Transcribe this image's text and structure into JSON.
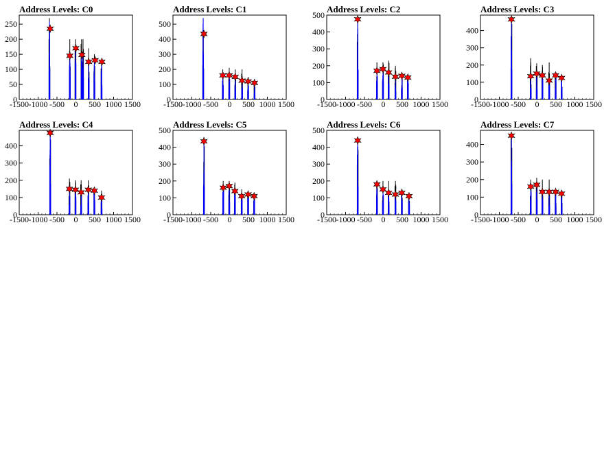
{
  "colors": {
    "black_histogram": "#000000",
    "blue_histogram": "#0000ff",
    "peak_marker": "#ff0000",
    "background": "#ffffff"
  },
  "chart_data": [
    {
      "type": "histogram",
      "title": "Address Levels: C0",
      "xlim": [
        -1500,
        1500
      ],
      "ylim": [
        0,
        280
      ],
      "xticks": [
        -1500,
        -1000,
        -500,
        0,
        500,
        1000,
        1500
      ],
      "yticks": [
        0,
        50,
        100,
        150,
        200,
        250
      ],
      "black_series": [
        [
          -700,
          270
        ],
        [
          -160,
          200
        ],
        [
          -10,
          200
        ],
        [
          150,
          200
        ],
        [
          190,
          200
        ],
        [
          340,
          170
        ],
        [
          490,
          150
        ],
        [
          680,
          130
        ]
      ],
      "blue_series": [
        [
          -700,
          260
        ],
        [
          -160,
          140
        ],
        [
          -10,
          160
        ],
        [
          150,
          150
        ],
        [
          190,
          140
        ],
        [
          340,
          120
        ],
        [
          490,
          130
        ],
        [
          680,
          120
        ]
      ],
      "peak_markers": [
        [
          -680,
          235
        ],
        [
          -160,
          145
        ],
        [
          0,
          170
        ],
        [
          160,
          148
        ],
        [
          340,
          125
        ],
        [
          510,
          130
        ],
        [
          690,
          125
        ]
      ]
    },
    {
      "type": "histogram",
      "title": "Address Levels: C1",
      "xlim": [
        -1500,
        1500
      ],
      "ylim": [
        0,
        560
      ],
      "xticks": [
        -1500,
        -1000,
        -500,
        0,
        500,
        1000,
        1500
      ],
      "yticks": [
        0,
        100,
        200,
        300,
        400,
        500
      ],
      "black_series": [
        [
          -700,
          540
        ],
        [
          -180,
          200
        ],
        [
          -10,
          210
        ],
        [
          150,
          200
        ],
        [
          330,
          200
        ],
        [
          490,
          150
        ],
        [
          660,
          130
        ]
      ],
      "blue_series": [
        [
          -700,
          540
        ],
        [
          -180,
          150
        ],
        [
          -10,
          150
        ],
        [
          150,
          140
        ],
        [
          330,
          120
        ],
        [
          490,
          110
        ],
        [
          660,
          100
        ]
      ],
      "peak_markers": [
        [
          -680,
          435
        ],
        [
          -180,
          160
        ],
        [
          -10,
          160
        ],
        [
          150,
          150
        ],
        [
          330,
          125
        ],
        [
          490,
          120
        ],
        [
          660,
          110
        ]
      ]
    },
    {
      "type": "histogram",
      "title": "Address Levels: C2",
      "xlim": [
        -1500,
        1500
      ],
      "ylim": [
        0,
        500
      ],
      "xticks": [
        -1500,
        -1000,
        -500,
        0,
        500,
        1000,
        1500
      ],
      "yticks": [
        0,
        100,
        200,
        300,
        400,
        500
      ],
      "black_series": [
        [
          -680,
          480
        ],
        [
          -170,
          220
        ],
        [
          -10,
          220
        ],
        [
          140,
          230
        ],
        [
          320,
          200
        ],
        [
          490,
          160
        ],
        [
          650,
          150
        ]
      ],
      "blue_series": [
        [
          -680,
          470
        ],
        [
          -170,
          160
        ],
        [
          -10,
          170
        ],
        [
          140,
          150
        ],
        [
          320,
          130
        ],
        [
          490,
          130
        ],
        [
          650,
          125
        ]
      ],
      "peak_markers": [
        [
          -680,
          475
        ],
        [
          -170,
          170
        ],
        [
          -10,
          180
        ],
        [
          140,
          160
        ],
        [
          320,
          135
        ],
        [
          490,
          140
        ],
        [
          650,
          130
        ]
      ]
    },
    {
      "type": "histogram",
      "title": "Address Levels: C3",
      "xlim": [
        -1500,
        1500
      ],
      "ylim": [
        0,
        490
      ],
      "xticks": [
        -1500,
        -1000,
        -500,
        0,
        500,
        1000,
        1500
      ],
      "yticks": [
        0,
        100,
        200,
        300,
        400
      ],
      "black_series": [
        [
          -680,
          470
        ],
        [
          -170,
          240
        ],
        [
          -10,
          210
        ],
        [
          140,
          200
        ],
        [
          320,
          215
        ],
        [
          490,
          160
        ],
        [
          650,
          140
        ]
      ],
      "blue_series": [
        [
          -680,
          460
        ],
        [
          -170,
          130
        ],
        [
          -10,
          150
        ],
        [
          140,
          140
        ],
        [
          320,
          110
        ],
        [
          490,
          140
        ],
        [
          650,
          125
        ]
      ],
      "peak_markers": [
        [
          -680,
          465
        ],
        [
          -170,
          135
        ],
        [
          -10,
          150
        ],
        [
          140,
          140
        ],
        [
          320,
          110
        ],
        [
          490,
          140
        ],
        [
          650,
          125
        ]
      ]
    },
    {
      "type": "histogram",
      "title": "Address Levels: C4",
      "xlim": [
        -1500,
        1500
      ],
      "ylim": [
        0,
        490
      ],
      "xticks": [
        -1500,
        -1000,
        -500,
        0,
        500,
        1000,
        1500
      ],
      "yticks": [
        0,
        100,
        200,
        300,
        400
      ],
      "black_series": [
        [
          -680,
          480
        ],
        [
          -170,
          210
        ],
        [
          -10,
          200
        ],
        [
          140,
          200
        ],
        [
          330,
          200
        ],
        [
          490,
          160
        ],
        [
          680,
          140
        ]
      ],
      "blue_series": [
        [
          -680,
          470
        ],
        [
          -170,
          150
        ],
        [
          -10,
          145
        ],
        [
          140,
          130
        ],
        [
          330,
          145
        ],
        [
          490,
          140
        ],
        [
          680,
          100
        ]
      ],
      "peak_markers": [
        [
          -680,
          475
        ],
        [
          -170,
          150
        ],
        [
          -10,
          145
        ],
        [
          140,
          130
        ],
        [
          330,
          145
        ],
        [
          490,
          140
        ],
        [
          680,
          100
        ]
      ]
    },
    {
      "type": "histogram",
      "title": "Address Levels: C5",
      "xlim": [
        -1500,
        1500
      ],
      "ylim": [
        0,
        500
      ],
      "xticks": [
        -1500,
        -1000,
        -500,
        0,
        500,
        1000,
        1500
      ],
      "yticks": [
        0,
        100,
        200,
        300,
        400,
        500
      ],
      "black_series": [
        [
          -680,
          460
        ],
        [
          -170,
          200
        ],
        [
          -10,
          200
        ],
        [
          140,
          190
        ],
        [
          320,
          150
        ],
        [
          490,
          140
        ],
        [
          650,
          130
        ]
      ],
      "blue_series": [
        [
          -680,
          440
        ],
        [
          -170,
          160
        ],
        [
          -10,
          170
        ],
        [
          140,
          140
        ],
        [
          320,
          110
        ],
        [
          490,
          120
        ],
        [
          650,
          110
        ]
      ],
      "peak_markers": [
        [
          -680,
          435
        ],
        [
          -170,
          160
        ],
        [
          -10,
          170
        ],
        [
          140,
          140
        ],
        [
          320,
          110
        ],
        [
          490,
          120
        ],
        [
          650,
          110
        ]
      ]
    },
    {
      "type": "histogram",
      "title": "Address Levels: C6",
      "xlim": [
        -1500,
        1500
      ],
      "ylim": [
        0,
        500
      ],
      "xticks": [
        -1500,
        -1000,
        -500,
        0,
        500,
        1000,
        1500
      ],
      "yticks": [
        0,
        100,
        200,
        300,
        400,
        500
      ],
      "black_series": [
        [
          -680,
          450
        ],
        [
          -170,
          200
        ],
        [
          -10,
          200
        ],
        [
          140,
          200
        ],
        [
          320,
          200
        ],
        [
          490,
          150
        ],
        [
          680,
          130
        ]
      ],
      "blue_series": [
        [
          -680,
          440
        ],
        [
          -170,
          175
        ],
        [
          -10,
          150
        ],
        [
          140,
          130
        ],
        [
          320,
          120
        ],
        [
          490,
          130
        ],
        [
          680,
          110
        ]
      ],
      "peak_markers": [
        [
          -680,
          440
        ],
        [
          -170,
          180
        ],
        [
          -10,
          150
        ],
        [
          140,
          130
        ],
        [
          320,
          120
        ],
        [
          490,
          130
        ],
        [
          680,
          110
        ]
      ]
    },
    {
      "type": "histogram",
      "title": "Address Levels: C7",
      "xlim": [
        -1500,
        1500
      ],
      "ylim": [
        0,
        480
      ],
      "xticks": [
        -1500,
        -1000,
        -500,
        0,
        500,
        1000,
        1500
      ],
      "yticks": [
        0,
        100,
        200,
        300,
        400
      ],
      "black_series": [
        [
          -680,
          460
        ],
        [
          -170,
          200
        ],
        [
          -10,
          210
        ],
        [
          140,
          200
        ],
        [
          320,
          200
        ],
        [
          490,
          140
        ],
        [
          650,
          130
        ]
      ],
      "blue_series": [
        [
          -680,
          450
        ],
        [
          -170,
          160
        ],
        [
          -10,
          170
        ],
        [
          140,
          130
        ],
        [
          320,
          130
        ],
        [
          490,
          130
        ],
        [
          650,
          120
        ]
      ],
      "peak_markers": [
        [
          -680,
          450
        ],
        [
          -170,
          160
        ],
        [
          -10,
          170
        ],
        [
          140,
          130
        ],
        [
          320,
          130
        ],
        [
          490,
          130
        ],
        [
          650,
          120
        ]
      ]
    }
  ]
}
